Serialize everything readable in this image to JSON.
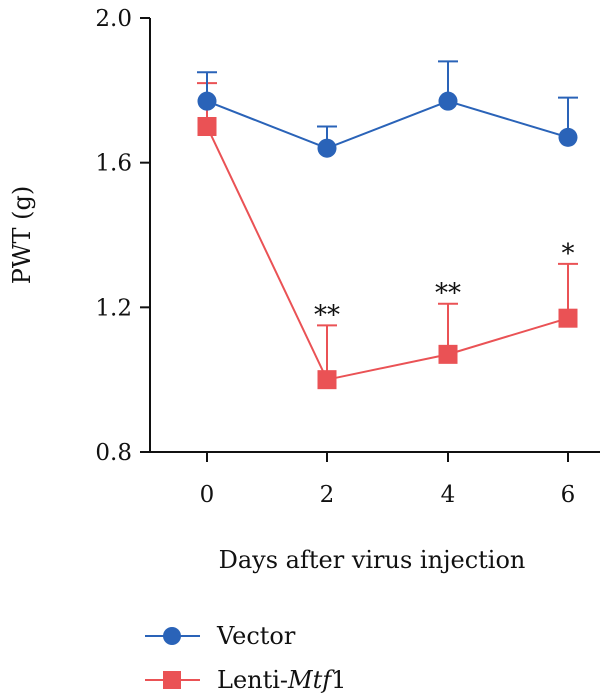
{
  "chart_data": {
    "type": "line",
    "x": [
      0,
      2,
      4,
      6
    ],
    "xlabel": "Days after virus injection",
    "ylabel": "PWT (g)",
    "ylim": [
      0.8,
      2.0
    ],
    "yticks": [
      "0.8",
      "1.2",
      "1.6",
      "2.0"
    ],
    "xticks": [
      "0",
      "2",
      "4",
      "6"
    ],
    "grid": false,
    "legend_position": "bottom-left",
    "series": [
      {
        "name": "Vector",
        "values": [
          1.77,
          1.64,
          1.77,
          1.67
        ],
        "error_upper": [
          0.08,
          0.06,
          0.11,
          0.11
        ],
        "color": "#2a63b8",
        "marker": "circle"
      },
      {
        "name_prefix": "Lenti-",
        "name_italic": "Mtf",
        "name_suffix": "1",
        "values": [
          1.7,
          1.0,
          1.07,
          1.17
        ],
        "error_upper": [
          0.12,
          0.15,
          0.14,
          0.15
        ],
        "color": "#ea5255",
        "marker": "square"
      }
    ],
    "annotations": [
      {
        "x": 2,
        "text": "**"
      },
      {
        "x": 4,
        "text": "**"
      },
      {
        "x": 6,
        "text": "*"
      }
    ]
  }
}
